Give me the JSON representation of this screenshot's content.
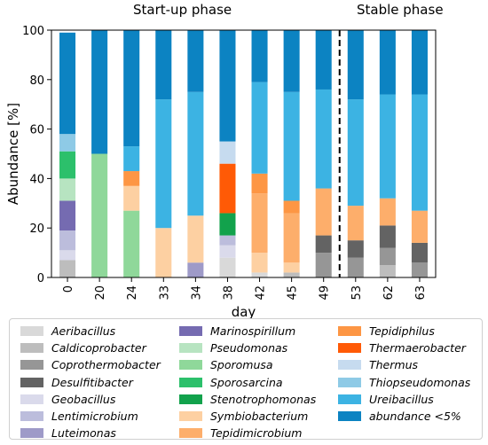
{
  "chart_data": {
    "type": "bar",
    "stacked": true,
    "xlabel": "day",
    "ylabel": "Abundance [%]",
    "ylim": [
      0,
      100
    ],
    "yticks": [
      0,
      20,
      40,
      60,
      80,
      100
    ],
    "phase_labels": [
      "Start-up phase",
      "Stable phase"
    ],
    "phase_divider_after": "49",
    "categories": [
      "0",
      "20",
      "24",
      "33",
      "34",
      "38",
      "42",
      "45",
      "49",
      "53",
      "62",
      "63"
    ],
    "series": [
      {
        "name": "Aeribacillus",
        "color": "#d9d9d9",
        "values": [
          0,
          0,
          0,
          0,
          0,
          8,
          2,
          0,
          0,
          0,
          0,
          0
        ]
      },
      {
        "name": "Caldicoprobacter",
        "color": "#bdbdbd",
        "values": [
          7,
          0,
          0,
          0,
          0,
          0,
          0,
          2,
          0,
          0,
          5,
          0
        ]
      },
      {
        "name": "Coprothermobacter",
        "color": "#969696",
        "values": [
          0,
          0,
          0,
          0,
          0,
          0,
          0,
          0,
          10,
          8,
          7,
          6
        ]
      },
      {
        "name": "Desulfitibacter",
        "color": "#636363",
        "values": [
          0,
          0,
          0,
          0,
          0,
          0,
          0,
          0,
          7,
          7,
          9,
          8
        ]
      },
      {
        "name": "Geobacillus",
        "color": "#dadaeb",
        "values": [
          4,
          0,
          0,
          0,
          0,
          5,
          0,
          0,
          0,
          0,
          0,
          0
        ]
      },
      {
        "name": "Lentimicrobium",
        "color": "#bcbddc",
        "values": [
          8,
          0,
          0,
          0,
          0,
          4,
          0,
          0,
          0,
          0,
          0,
          0
        ]
      },
      {
        "name": "Luteimonas",
        "color": "#9e9ac8",
        "values": [
          0,
          0,
          0,
          0,
          6,
          0,
          0,
          0,
          0,
          0,
          0,
          0
        ]
      },
      {
        "name": "Marinospirillum",
        "color": "#756bb1",
        "values": [
          12,
          0,
          0,
          0,
          0,
          0,
          0,
          0,
          0,
          0,
          0,
          0
        ]
      },
      {
        "name": "Pseudomonas",
        "color": "#b7e4c1",
        "values": [
          9,
          0,
          0,
          0,
          0,
          0,
          0,
          0,
          0,
          0,
          0,
          0
        ]
      },
      {
        "name": "Sporomusa",
        "color": "#8fd89a",
        "values": [
          0,
          50,
          27,
          0,
          0,
          0,
          0,
          0,
          0,
          0,
          0,
          0
        ]
      },
      {
        "name": "Sporosarcina",
        "color": "#2cc06b",
        "values": [
          11,
          0,
          0,
          0,
          0,
          0,
          0,
          0,
          0,
          0,
          0,
          0
        ]
      },
      {
        "name": "Stenotrophomonas",
        "color": "#12a24c",
        "values": [
          0,
          0,
          0,
          0,
          0,
          9,
          0,
          0,
          0,
          0,
          0,
          0
        ]
      },
      {
        "name": "Symbiobacterium",
        "color": "#fdd0a2",
        "values": [
          0,
          0,
          10,
          20,
          19,
          0,
          8,
          4,
          0,
          0,
          0,
          0
        ]
      },
      {
        "name": "Tepidimicrobium",
        "color": "#fdae6b",
        "values": [
          0,
          0,
          0,
          0,
          0,
          0,
          24,
          20,
          19,
          14,
          11,
          13
        ]
      },
      {
        "name": "Tepidiphilus",
        "color": "#fd9644",
        "values": [
          0,
          0,
          6,
          0,
          0,
          0,
          8,
          5,
          0,
          0,
          0,
          0
        ]
      },
      {
        "name": "Thermaerobacter",
        "color": "#ff5a06",
        "values": [
          0,
          0,
          0,
          0,
          0,
          20,
          0,
          0,
          0,
          0,
          0,
          0
        ]
      },
      {
        "name": "Thermus",
        "color": "#c6dbef",
        "values": [
          0,
          0,
          0,
          0,
          0,
          9,
          0,
          0,
          0,
          0,
          0,
          0
        ]
      },
      {
        "name": "Thiopseudomonas",
        "color": "#8ecae6",
        "values": [
          7,
          0,
          0,
          0,
          0,
          0,
          0,
          0,
          0,
          0,
          0,
          0
        ]
      },
      {
        "name": "Ureibacillus",
        "color": "#3cb3e3",
        "values": [
          0,
          0,
          10,
          52,
          50,
          0,
          37,
          44,
          40,
          43,
          42,
          47
        ]
      },
      {
        "name": "abundance <5%",
        "color": "#0c83c2",
        "values": [
          41,
          50,
          47,
          28,
          25,
          45,
          21,
          25,
          24,
          28,
          26,
          26
        ]
      }
    ]
  }
}
